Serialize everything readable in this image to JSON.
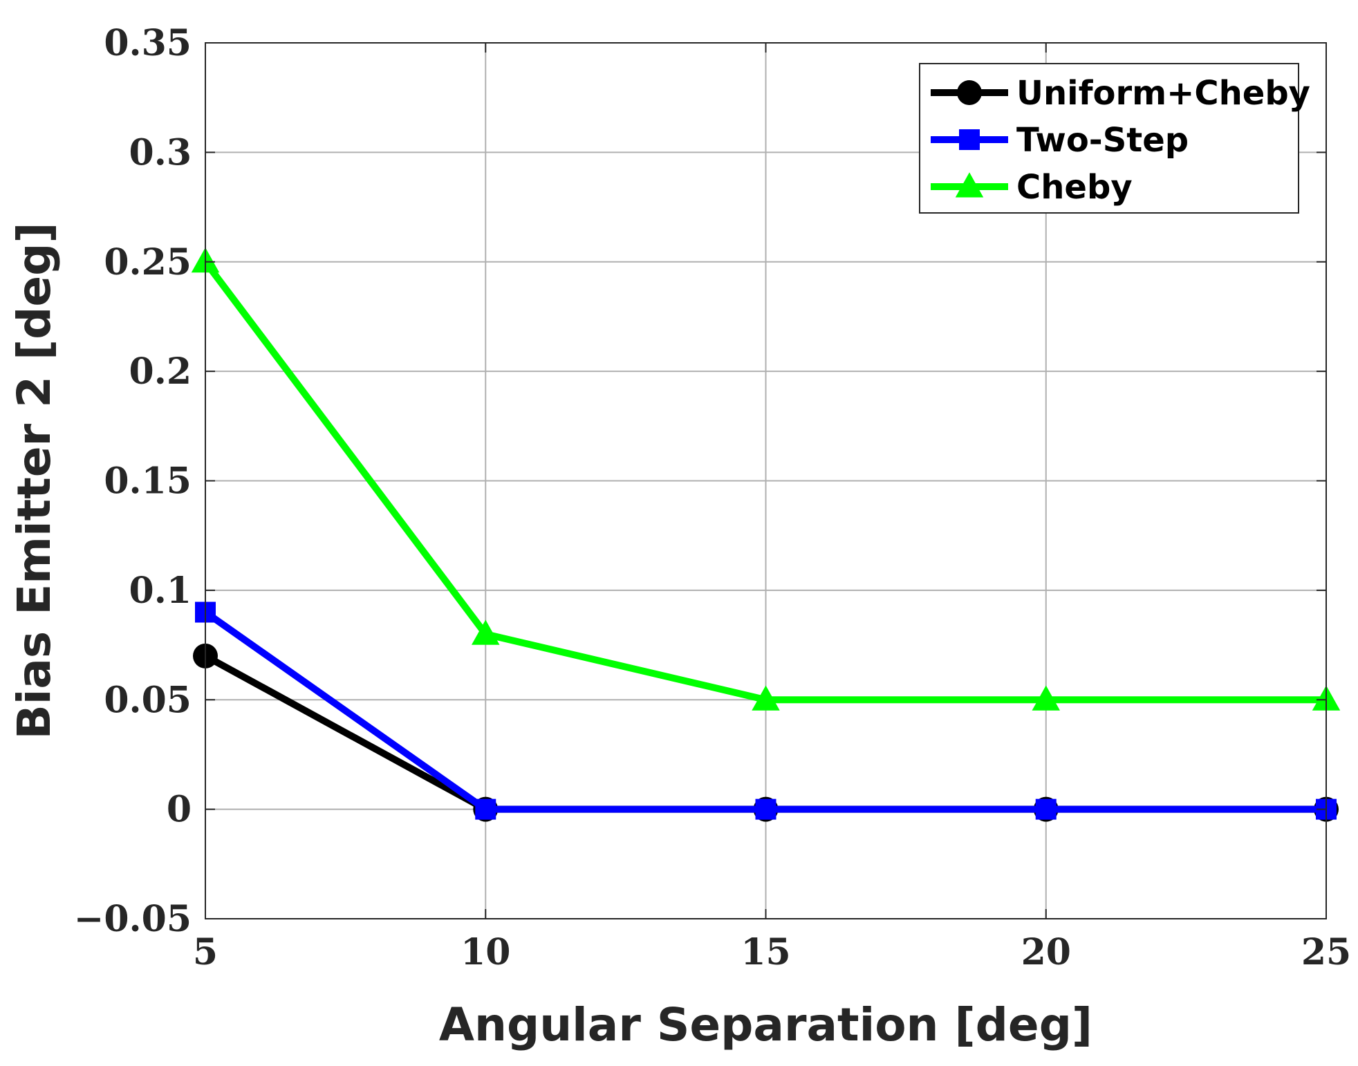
{
  "chart_data": {
    "type": "line",
    "title": "",
    "xlabel": "Angular Separation [deg]",
    "ylabel": "Bias Emitter 2 [deg]",
    "x": [
      5,
      10,
      15,
      20,
      25
    ],
    "xlim": [
      5,
      25
    ],
    "ylim": [
      -0.05,
      0.35
    ],
    "xticks": [
      5,
      10,
      15,
      20,
      25
    ],
    "xtick_labels": [
      "5",
      "10",
      "15",
      "20",
      "25"
    ],
    "yticks": [
      -0.05,
      0,
      0.05,
      0.1,
      0.15,
      0.2,
      0.25,
      0.3,
      0.35
    ],
    "ytick_labels": [
      "−0.05",
      "0",
      "0.05",
      "0.1",
      "0.15",
      "0.2",
      "0.25",
      "0.3",
      "0.35"
    ],
    "grid": true,
    "legend_position": "top-right",
    "series": [
      {
        "name": "Uniform+Cheby",
        "values": [
          0.07,
          0,
          0,
          0,
          0
        ],
        "color": "#000000",
        "marker": "circle"
      },
      {
        "name": "Two-Step",
        "values": [
          0.09,
          0,
          0,
          0,
          0
        ],
        "color": "#0000ff",
        "marker": "square"
      },
      {
        "name": "Cheby",
        "values": [
          0.25,
          0.08,
          0.05,
          0.05,
          0.05
        ],
        "color": "#00ff00",
        "marker": "triangle"
      }
    ]
  }
}
